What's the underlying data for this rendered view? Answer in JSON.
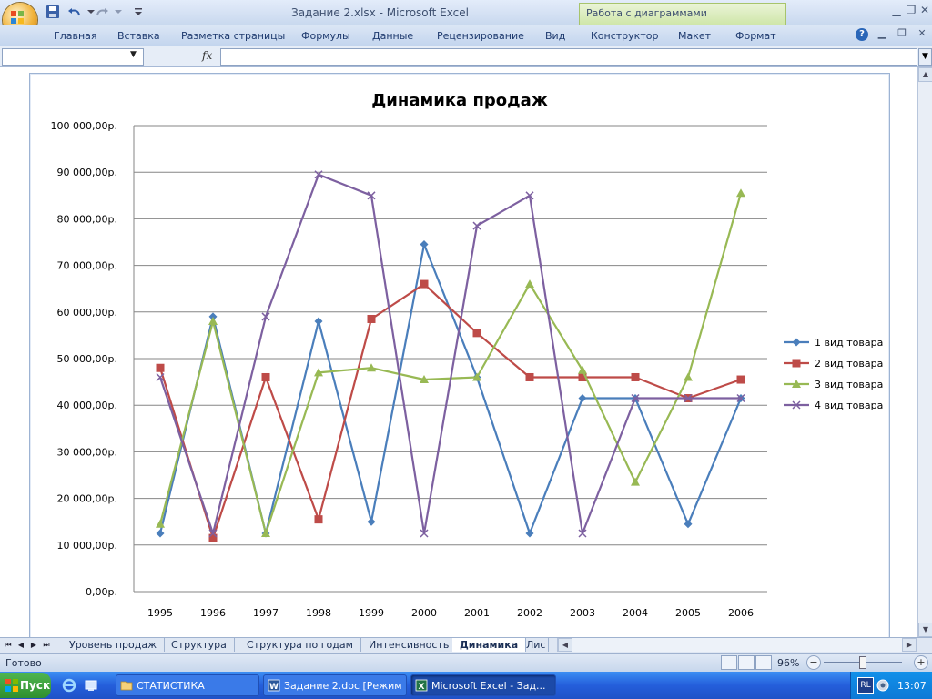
{
  "window": {
    "title": "Задание 2.xlsx - Microsoft Excel",
    "context_group": "Работа с диаграммами"
  },
  "ribbon_tabs": [
    "Главная",
    "Вставка",
    "Разметка страницы",
    "Формулы",
    "Данные",
    "Рецензирование",
    "Вид",
    "Конструктор",
    "Макет",
    "Формат"
  ],
  "formula_bar": {
    "name_box": "",
    "fx_label": "fx",
    "formula": ""
  },
  "sheet_tabs": [
    "Уровень продаж",
    "Структура",
    "Структура по годам",
    "Интенсивность",
    "Динамика",
    "Лист"
  ],
  "active_sheet": "Динамика",
  "status": {
    "ready": "Готово",
    "zoom": "96%"
  },
  "taskbar": {
    "start": "Пуск",
    "tasks": [
      "СТАТИСТИКА",
      "Задание 2.doc [Режим ...",
      "Microsoft Excel - Зад..."
    ],
    "lang": "RL",
    "clock": "13:07"
  },
  "colors": {
    "series1": "#4a7ebb",
    "series2": "#be4b48",
    "series3": "#98b954",
    "series4": "#7d60a0"
  },
  "chart_data": {
    "type": "line",
    "title": "Динамика продаж",
    "categories": [
      "1995",
      "1996",
      "1997",
      "1998",
      "1999",
      "2000",
      "2001",
      "2002",
      "2003",
      "2004",
      "2005",
      "2006"
    ],
    "y_ticks": [
      "0,00р.",
      "10 000,00р.",
      "20 000,00р.",
      "30 000,00р.",
      "40 000,00р.",
      "50 000,00р.",
      "60 000,00р.",
      "70 000,00р.",
      "80 000,00р.",
      "90 000,00р.",
      "100 000,00р."
    ],
    "ylim": [
      0,
      100000
    ],
    "grid": true,
    "legend_position": "right",
    "series": [
      {
        "name": "1 вид товара",
        "marker": "diamond",
        "values": [
          12500,
          59000,
          12500,
          58000,
          15000,
          74500,
          46000,
          12500,
          41500,
          41500,
          14500,
          41500
        ]
      },
      {
        "name": "2 вид товара",
        "marker": "square",
        "values": [
          48000,
          11500,
          46000,
          15500,
          58500,
          66000,
          55500,
          46000,
          46000,
          46000,
          41500,
          45500
        ]
      },
      {
        "name": "3 вид товара",
        "marker": "triangle",
        "values": [
          14500,
          58000,
          12500,
          47000,
          48000,
          45500,
          46000,
          66000,
          47500,
          23500,
          46000,
          85500
        ]
      },
      {
        "name": "4 вид товара",
        "marker": "x",
        "values": [
          46000,
          12500,
          59000,
          89500,
          85000,
          12500,
          78500,
          85000,
          12500,
          41500,
          41500,
          41500
        ]
      }
    ]
  }
}
